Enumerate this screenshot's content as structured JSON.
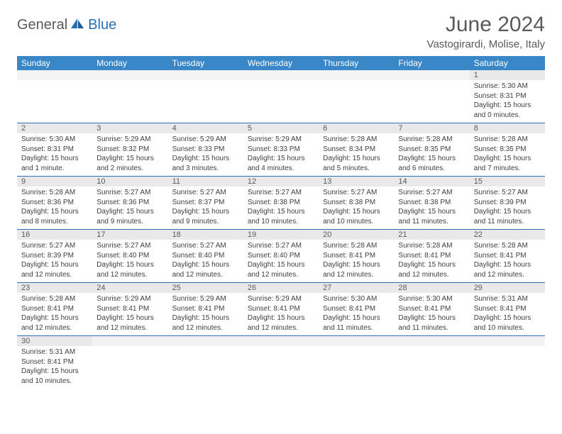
{
  "brand": {
    "part1": "General",
    "part2": "Blue"
  },
  "title": "June 2024",
  "location": "Vastogirardi, Molise, Italy",
  "colors": {
    "header_bg": "#3a87c8",
    "header_text": "#ffffff",
    "daynum_bg": "#e9e9e9",
    "cell_border": "#2a6fb5",
    "text_gray": "#5a5a5a",
    "brand_blue": "#2a6fb5"
  },
  "weekdays": [
    "Sunday",
    "Monday",
    "Tuesday",
    "Wednesday",
    "Thursday",
    "Friday",
    "Saturday"
  ],
  "layout": {
    "first_weekday_index": 6,
    "days_in_month": 30
  },
  "days": {
    "1": {
      "sunrise": "5:30 AM",
      "sunset": "8:31 PM",
      "daylight": "15 hours and 0 minutes."
    },
    "2": {
      "sunrise": "5:30 AM",
      "sunset": "8:31 PM",
      "daylight": "15 hours and 1 minute."
    },
    "3": {
      "sunrise": "5:29 AM",
      "sunset": "8:32 PM",
      "daylight": "15 hours and 2 minutes."
    },
    "4": {
      "sunrise": "5:29 AM",
      "sunset": "8:33 PM",
      "daylight": "15 hours and 3 minutes."
    },
    "5": {
      "sunrise": "5:29 AM",
      "sunset": "8:33 PM",
      "daylight": "15 hours and 4 minutes."
    },
    "6": {
      "sunrise": "5:28 AM",
      "sunset": "8:34 PM",
      "daylight": "15 hours and 5 minutes."
    },
    "7": {
      "sunrise": "5:28 AM",
      "sunset": "8:35 PM",
      "daylight": "15 hours and 6 minutes."
    },
    "8": {
      "sunrise": "5:28 AM",
      "sunset": "8:35 PM",
      "daylight": "15 hours and 7 minutes."
    },
    "9": {
      "sunrise": "5:28 AM",
      "sunset": "8:36 PM",
      "daylight": "15 hours and 8 minutes."
    },
    "10": {
      "sunrise": "5:27 AM",
      "sunset": "8:36 PM",
      "daylight": "15 hours and 9 minutes."
    },
    "11": {
      "sunrise": "5:27 AM",
      "sunset": "8:37 PM",
      "daylight": "15 hours and 9 minutes."
    },
    "12": {
      "sunrise": "5:27 AM",
      "sunset": "8:38 PM",
      "daylight": "15 hours and 10 minutes."
    },
    "13": {
      "sunrise": "5:27 AM",
      "sunset": "8:38 PM",
      "daylight": "15 hours and 10 minutes."
    },
    "14": {
      "sunrise": "5:27 AM",
      "sunset": "8:38 PM",
      "daylight": "15 hours and 11 minutes."
    },
    "15": {
      "sunrise": "5:27 AM",
      "sunset": "8:39 PM",
      "daylight": "15 hours and 11 minutes."
    },
    "16": {
      "sunrise": "5:27 AM",
      "sunset": "8:39 PM",
      "daylight": "15 hours and 12 minutes."
    },
    "17": {
      "sunrise": "5:27 AM",
      "sunset": "8:40 PM",
      "daylight": "15 hours and 12 minutes."
    },
    "18": {
      "sunrise": "5:27 AM",
      "sunset": "8:40 PM",
      "daylight": "15 hours and 12 minutes."
    },
    "19": {
      "sunrise": "5:27 AM",
      "sunset": "8:40 PM",
      "daylight": "15 hours and 12 minutes."
    },
    "20": {
      "sunrise": "5:28 AM",
      "sunset": "8:41 PM",
      "daylight": "15 hours and 12 minutes."
    },
    "21": {
      "sunrise": "5:28 AM",
      "sunset": "8:41 PM",
      "daylight": "15 hours and 12 minutes."
    },
    "22": {
      "sunrise": "5:28 AM",
      "sunset": "8:41 PM",
      "daylight": "15 hours and 12 minutes."
    },
    "23": {
      "sunrise": "5:28 AM",
      "sunset": "8:41 PM",
      "daylight": "15 hours and 12 minutes."
    },
    "24": {
      "sunrise": "5:29 AM",
      "sunset": "8:41 PM",
      "daylight": "15 hours and 12 minutes."
    },
    "25": {
      "sunrise": "5:29 AM",
      "sunset": "8:41 PM",
      "daylight": "15 hours and 12 minutes."
    },
    "26": {
      "sunrise": "5:29 AM",
      "sunset": "8:41 PM",
      "daylight": "15 hours and 12 minutes."
    },
    "27": {
      "sunrise": "5:30 AM",
      "sunset": "8:41 PM",
      "daylight": "15 hours and 11 minutes."
    },
    "28": {
      "sunrise": "5:30 AM",
      "sunset": "8:41 PM",
      "daylight": "15 hours and 11 minutes."
    },
    "29": {
      "sunrise": "5:31 AM",
      "sunset": "8:41 PM",
      "daylight": "15 hours and 10 minutes."
    },
    "30": {
      "sunrise": "5:31 AM",
      "sunset": "8:41 PM",
      "daylight": "15 hours and 10 minutes."
    }
  },
  "labels": {
    "sunrise": "Sunrise: ",
    "sunset": "Sunset: ",
    "daylight": "Daylight: "
  }
}
